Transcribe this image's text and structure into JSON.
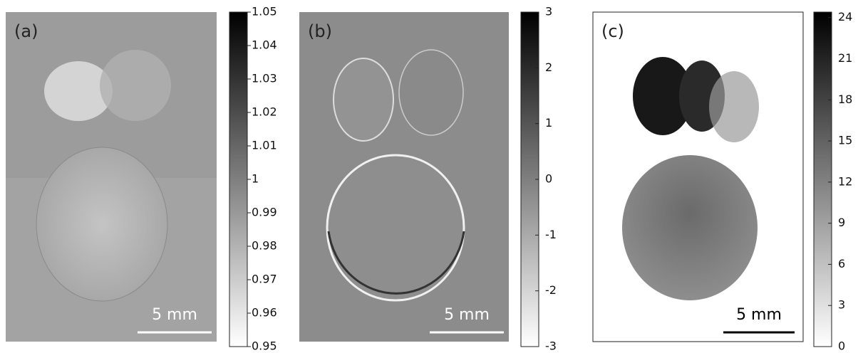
{
  "panels": [
    {
      "label": "(a)",
      "scalebar": "5 mm",
      "colorbar": {
        "lim": [
          0.95,
          1.05
        ],
        "ticks": [
          1.05,
          1.04,
          1.03,
          1.02,
          1.01,
          1,
          0.99,
          0.98,
          0.97,
          0.96,
          0.95
        ]
      }
    },
    {
      "label": "(b)",
      "scalebar": "5 mm",
      "colorbar": {
        "lim": [
          -3,
          3
        ],
        "ticks": [
          3,
          2,
          1,
          0,
          -1,
          -2,
          -3
        ]
      }
    },
    {
      "label": "(c)",
      "scalebar": "5 mm",
      "colorbar": {
        "lim": [
          0,
          24.4
        ],
        "ticks": [
          24,
          21,
          18,
          15,
          12,
          9,
          6,
          3,
          0
        ]
      }
    }
  ]
}
